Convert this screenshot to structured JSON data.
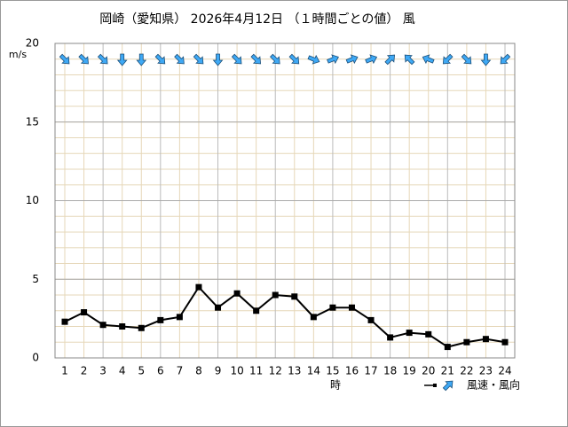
{
  "chart_data": {
    "type": "line",
    "title": "岡崎（愛知県） 2026年4月12日 （１時間ごとの値） 風",
    "y_label": "m/s",
    "x_label": "時",
    "legend": "風速・風向",
    "categories": [
      "1",
      "2",
      "3",
      "4",
      "5",
      "6",
      "7",
      "8",
      "9",
      "10",
      "11",
      "12",
      "13",
      "14",
      "15",
      "16",
      "17",
      "18",
      "19",
      "20",
      "21",
      "22",
      "23",
      "24"
    ],
    "values": [
      2.3,
      2.9,
      2.1,
      2.0,
      1.9,
      2.4,
      2.6,
      4.5,
      3.2,
      4.1,
      3.0,
      4.0,
      3.9,
      2.6,
      3.2,
      3.2,
      2.4,
      1.3,
      1.6,
      1.5,
      0.7,
      1.0,
      1.2,
      1.0
    ],
    "wind_from_deg": [
      315,
      315,
      315,
      0,
      0,
      315,
      315,
      315,
      0,
      315,
      315,
      315,
      315,
      292.5,
      247.5,
      247.5,
      247.5,
      225,
      135,
      112.5,
      45,
      315,
      0,
      45
    ],
    "color": "#000000",
    "arrow_color": "#3fa9f5",
    "ylim": [
      0,
      20
    ],
    "yticks": [
      0,
      5,
      10,
      15,
      20
    ],
    "grid": true,
    "minor_grid_step": 1
  }
}
